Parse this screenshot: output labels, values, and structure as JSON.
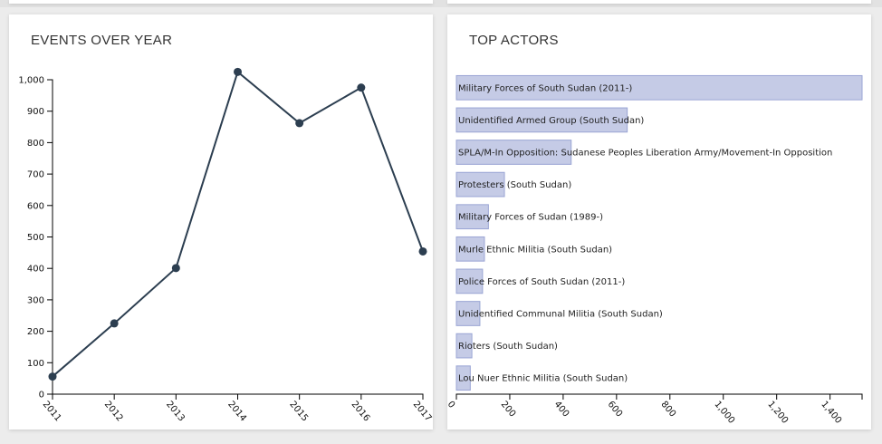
{
  "panels": {
    "left_title": "EVENTS OVER YEAR",
    "right_title": "TOP ACTORS"
  },
  "colors": {
    "line": "#2c3e50",
    "bar_fill": "#c5cbe6",
    "bar_stroke": "#9aa5d4",
    "axis": "#000000"
  },
  "chart_data": [
    {
      "type": "line",
      "title": "EVENTS OVER YEAR",
      "x": [
        "2011",
        "2012",
        "2013",
        "2014",
        "2015",
        "2016",
        "2017"
      ],
      "values": [
        56,
        225,
        401,
        1025,
        862,
        975,
        454
      ],
      "ylim": [
        0,
        1000
      ],
      "yticks": [
        0,
        100,
        200,
        300,
        400,
        500,
        600,
        700,
        800,
        900,
        1000
      ],
      "ytick_labels": [
        "0",
        "100",
        "200",
        "300",
        "400",
        "500",
        "600",
        "700",
        "800",
        "900",
        "1,000"
      ],
      "markers": true,
      "grid": false
    },
    {
      "type": "bar",
      "orientation": "horizontal",
      "title": "TOP ACTORS",
      "categories": [
        "Military Forces of South Sudan (2011-)",
        "Unidentified Armed Group (South Sudan)",
        "SPLA/M-In Opposition: Sudanese Peoples Liberation Army/Movement-In Opposition",
        "Protesters (South Sudan)",
        "Military Forces of Sudan (1989-)",
        "Murle Ethnic Militia (South Sudan)",
        "Police Forces of South Sudan (2011-)",
        "Unidentified Communal Militia (South Sudan)",
        "Rioters (South Sudan)",
        "Lou Nuer Ethnic Militia (South Sudan)"
      ],
      "values": [
        1520,
        640,
        430,
        180,
        120,
        105,
        98,
        88,
        58,
        52
      ],
      "xlim": [
        0,
        1520
      ],
      "xticks": [
        0,
        200,
        400,
        600,
        800,
        1000,
        1200,
        1400
      ],
      "xtick_labels": [
        "0",
        "200",
        "400",
        "600",
        "800",
        "1,000",
        "1,200",
        "1,400"
      ],
      "grid": false
    }
  ]
}
